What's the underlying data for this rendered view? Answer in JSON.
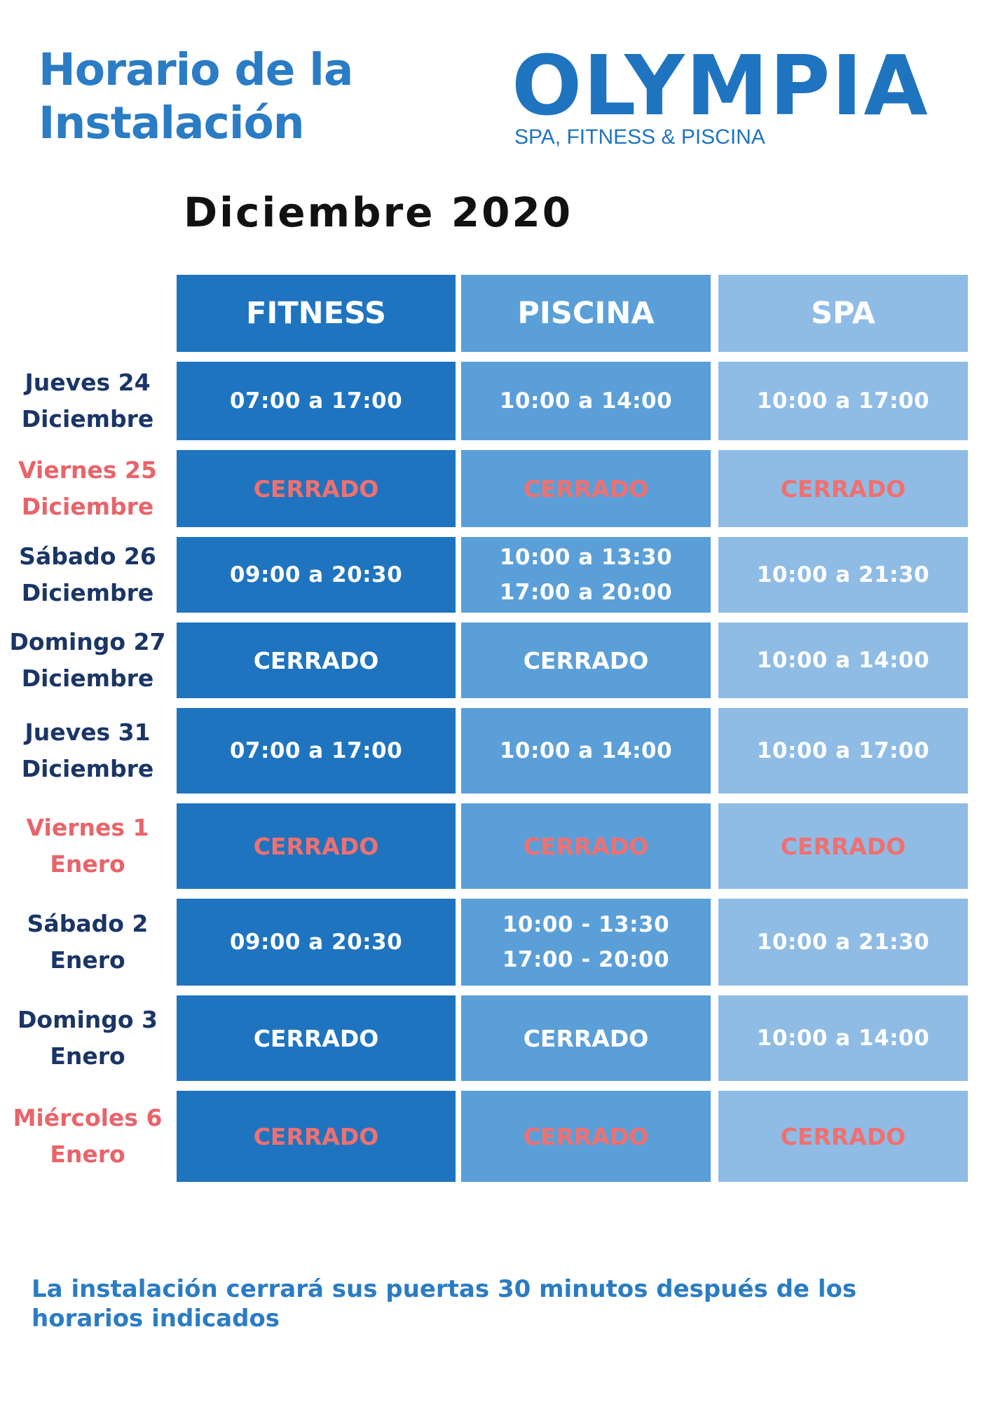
{
  "title": {
    "line1": "Horario de la",
    "line2": "Instalación"
  },
  "logo": {
    "name": "OLYMPIA",
    "tagline": "SPA, FITNESS & PISCINA"
  },
  "subtitle": "Diciembre 2020",
  "columns": [
    "FITNESS",
    "PISCINA",
    "SPA"
  ],
  "rows": [
    {
      "day": "Jueves 24",
      "month": "Diciembre",
      "fitness": [
        "07:00 a 17:00"
      ],
      "piscina": [
        "10:00 a 14:00"
      ],
      "spa": [
        "10:00 a 17:00"
      ]
    },
    {
      "day": "Viernes 25",
      "month": "Diciembre",
      "fitness": [
        "CERRADO"
      ],
      "piscina": [
        "CERRADO"
      ],
      "spa": [
        "CERRADO"
      ]
    },
    {
      "day": "Sábado 26",
      "month": "Diciembre",
      "fitness": [
        "09:00 a 20:30"
      ],
      "piscina": [
        "10:00 a 13:30",
        "17:00 a 20:00"
      ],
      "spa": [
        "10:00 a 21:30"
      ]
    },
    {
      "day": "Domingo 27",
      "month": "Diciembre",
      "fitness": [
        "CERRADO"
      ],
      "piscina": [
        "CERRADO"
      ],
      "spa": [
        "10:00 a 14:00"
      ]
    },
    {
      "day": "Jueves 31",
      "month": "Diciembre",
      "fitness": [
        "07:00 a 17:00"
      ],
      "piscina": [
        "10:00 a 14:00"
      ],
      "spa": [
        "10:00 a 17:00"
      ]
    },
    {
      "day": "Viernes 1",
      "month": "Enero",
      "fitness": [
        "CERRADO"
      ],
      "piscina": [
        "CERRADO"
      ],
      "spa": [
        "CERRADO"
      ]
    },
    {
      "day": "Sábado 2",
      "month": "Enero",
      "fitness": [
        "09:00 a 20:30"
      ],
      "piscina": [
        "10:00 - 13:30",
        "17:00 - 20:00"
      ],
      "spa": [
        "10:00 a 21:30"
      ]
    },
    {
      "day": "Domingo 3",
      "month": "Enero",
      "fitness": [
        "CERRADO"
      ],
      "piscina": [
        "CERRADO"
      ],
      "spa": [
        "10:00 a 14:00"
      ]
    },
    {
      "day": "Miércoles 6",
      "month": "Enero",
      "fitness": [
        "CERRADO"
      ],
      "piscina": [
        "CERRADO"
      ],
      "spa": [
        "CERRADO"
      ]
    }
  ],
  "note": "La instalación cerrará sus puertas 30 minutos después de los horarios indicados",
  "colors": {
    "title": "#2a7cc4",
    "fitness": "#1f74c0",
    "piscina": "#5b9fd8",
    "spa": "#8fbce5",
    "holiday_text": "#f07070",
    "day_text": "#1a3566"
  }
}
